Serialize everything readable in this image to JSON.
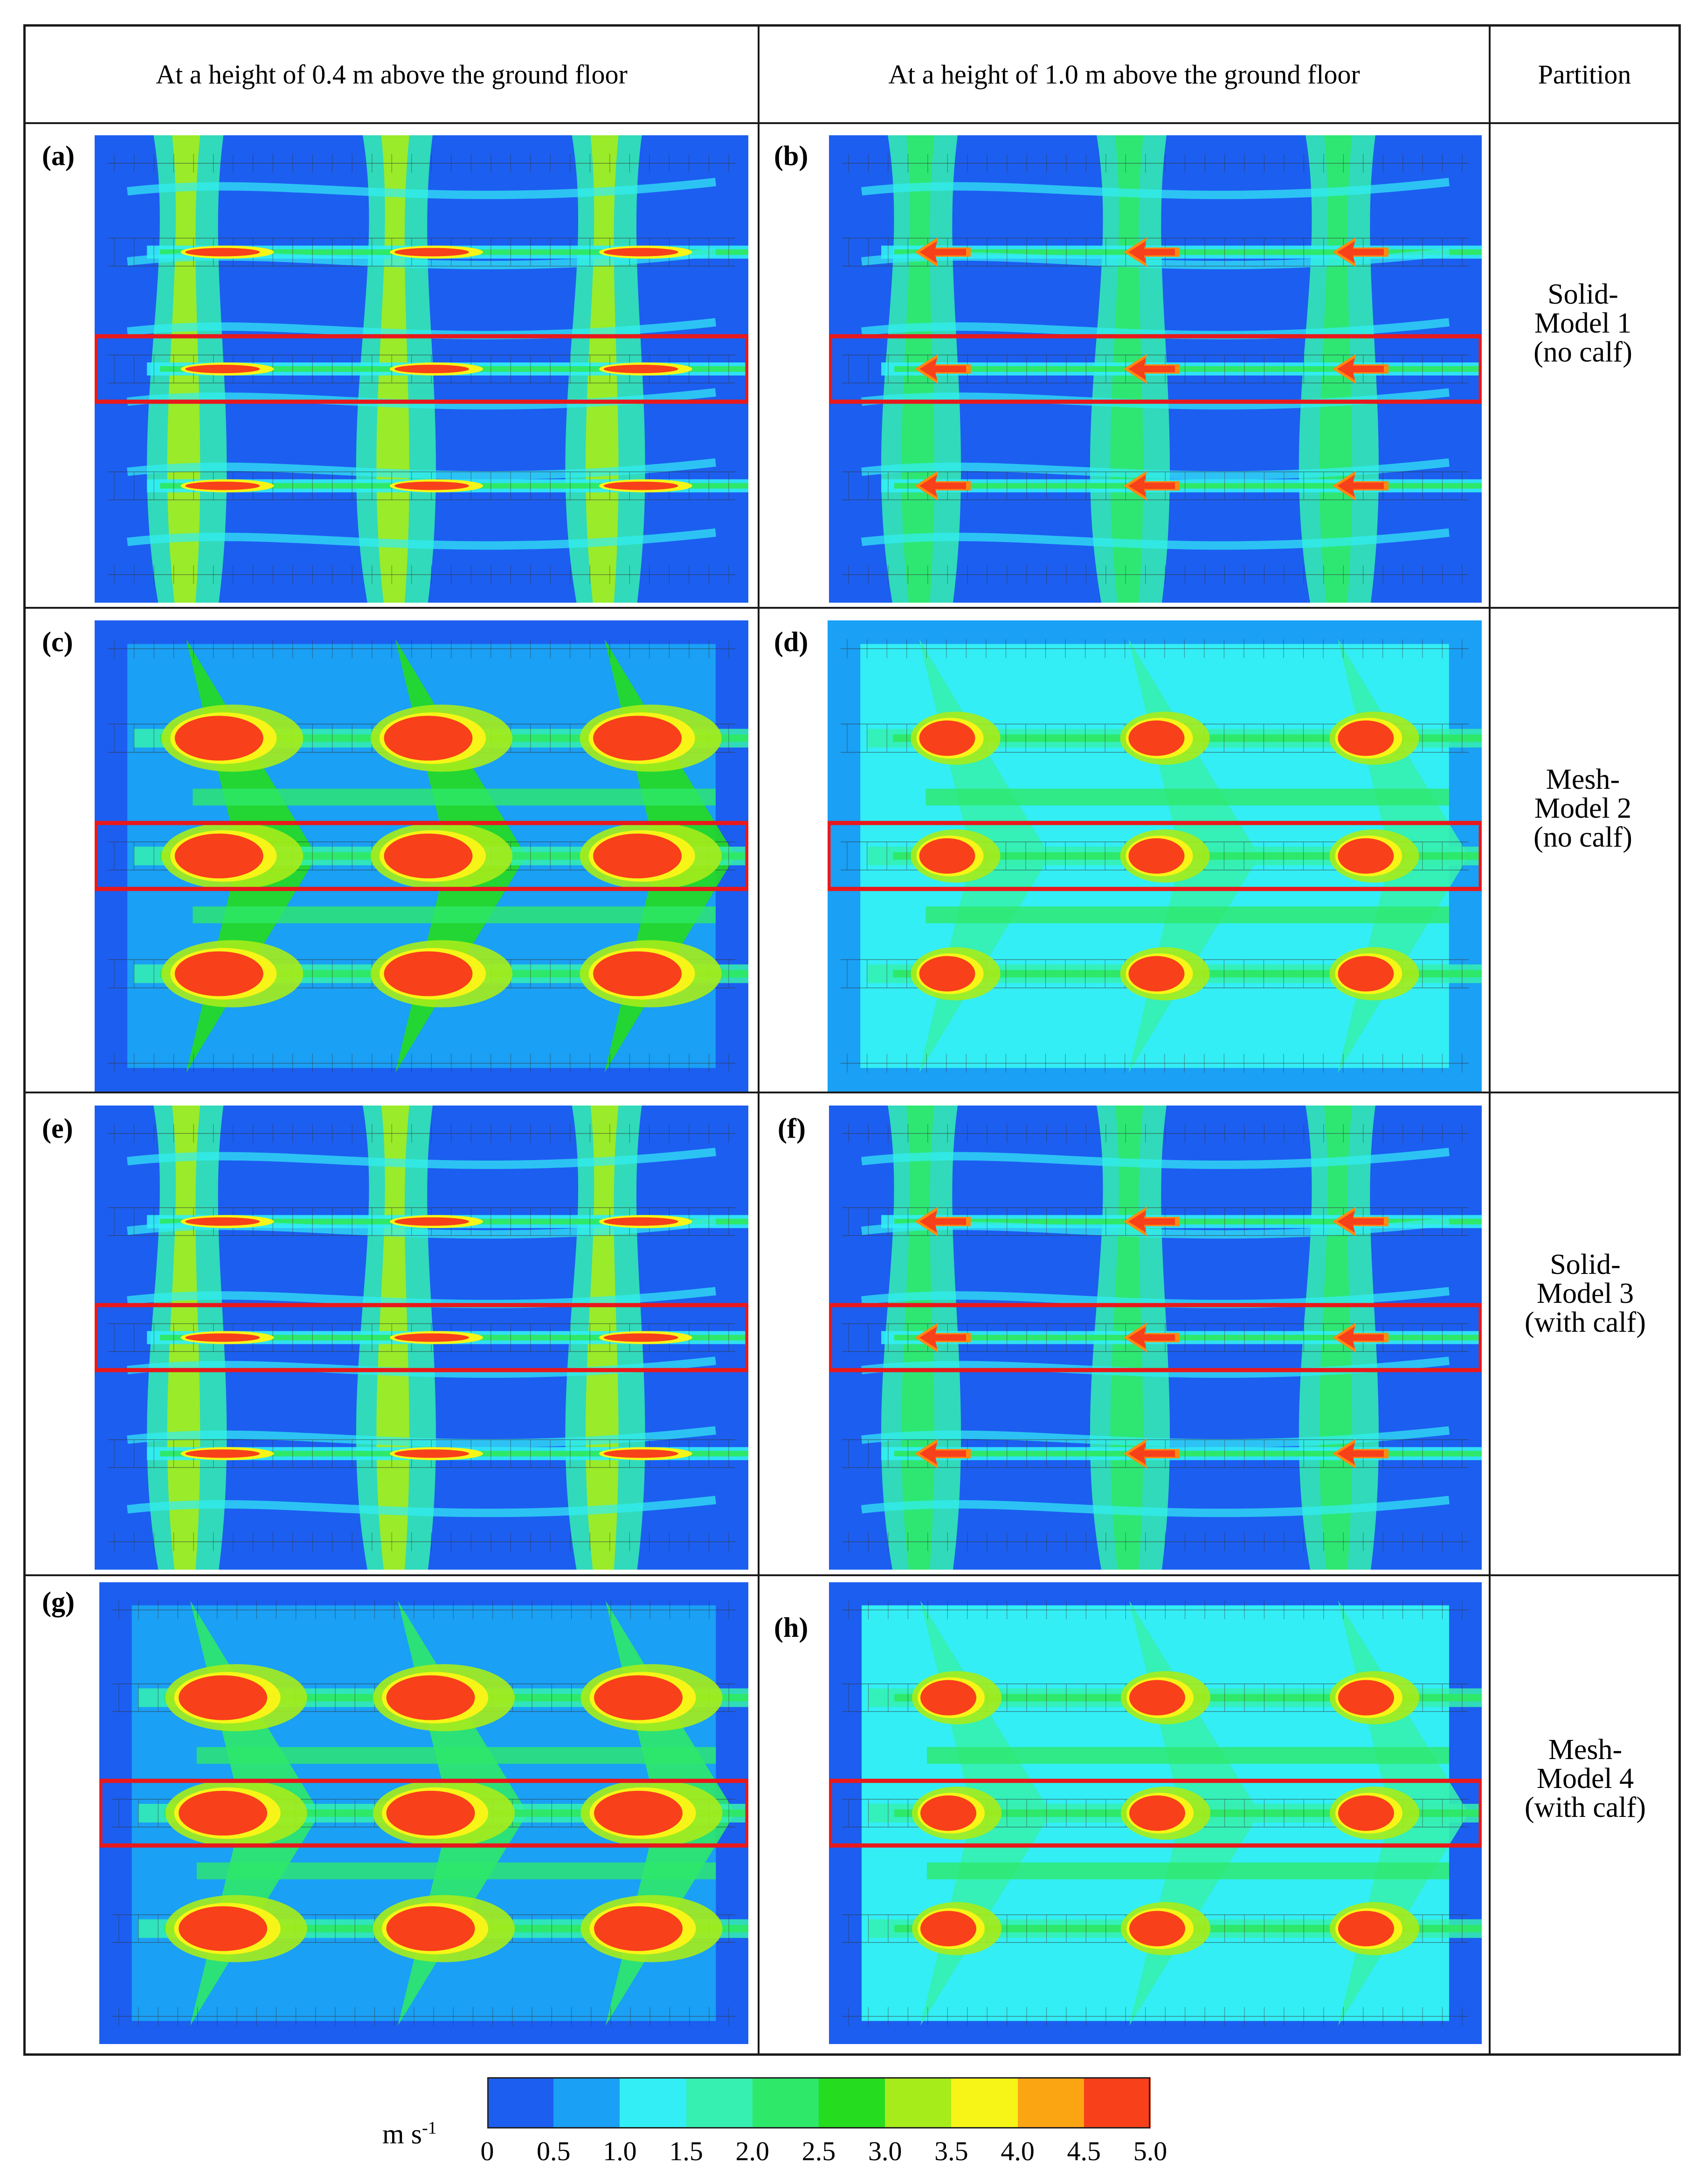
{
  "headers": {
    "col1": "At a height of 0.4 m above the ground floor",
    "col2": "At a height of 1.0 m above the ground floor",
    "col3": "Partition"
  },
  "panels": {
    "a": "(a)",
    "b": "(b)",
    "c": "(c)",
    "d": "(d)",
    "e": "(e)",
    "f": "(f)",
    "g": "(g)",
    "h": "(h)"
  },
  "partitions": [
    {
      "line1": "Solid-",
      "line2": "Model 1",
      "line3": "(no calf)"
    },
    {
      "line1": "Mesh-",
      "line2": "Model 2",
      "line3": "(no calf)"
    },
    {
      "line1": "Solid-",
      "line2": "Model 3",
      "line3": "(with calf)"
    },
    {
      "line1": "Mesh-",
      "line2": "Model 4",
      "line3": "(with calf)"
    }
  ],
  "colorbar": {
    "unit_base": "m s",
    "unit_exp": "-1",
    "ticks": [
      "0",
      "0.5",
      "1.0",
      "1.5",
      "2.0",
      "2.5",
      "3.0",
      "3.5",
      "4.0",
      "4.5",
      "5.0"
    ],
    "colors": [
      "#1c5ef0",
      "#1aa0f5",
      "#33eef5",
      "#35f0b0",
      "#2ee86a",
      "#25dc1e",
      "#a6ec1a",
      "#f7f517",
      "#fca512",
      "#f8401a"
    ]
  },
  "colors": {
    "highlight_box": "#e8191c",
    "grid_border": "#1a1a1a"
  }
}
